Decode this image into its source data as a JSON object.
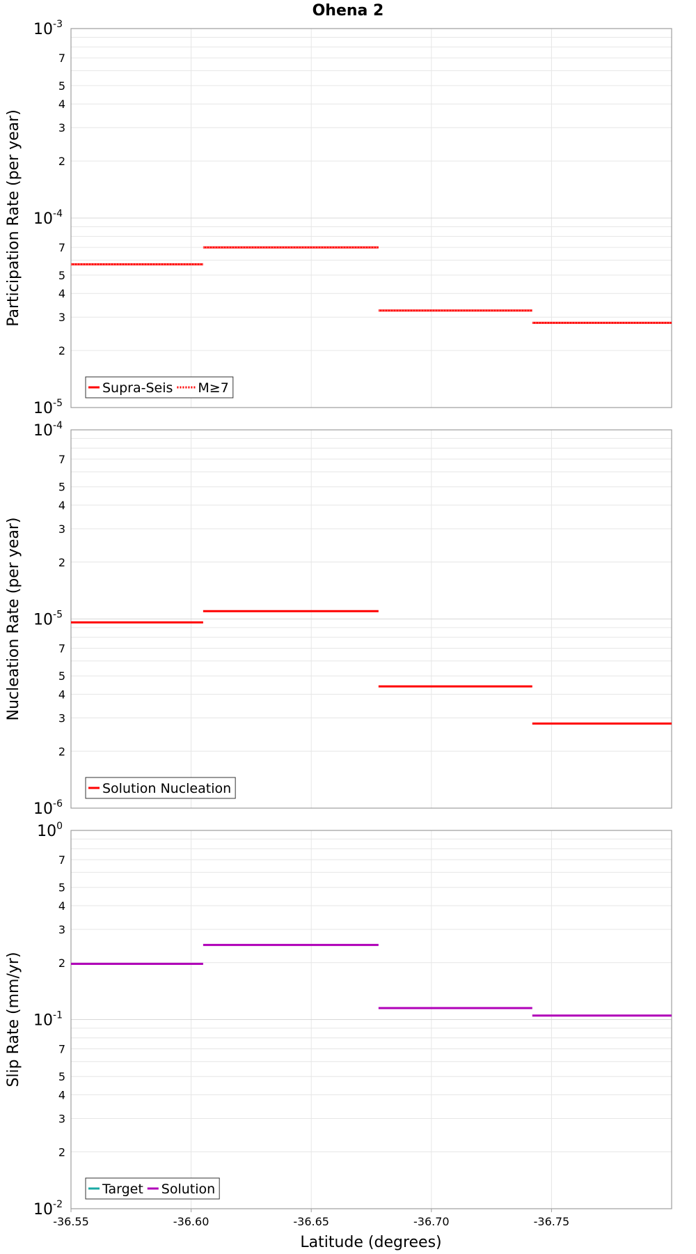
{
  "chart_data": {
    "type": "line",
    "title": "Ohena 2",
    "xlabel": "Latitude (degrees)",
    "xlim": [
      -36.55,
      -36.8
    ],
    "xticks": [
      -36.55,
      -36.6,
      -36.65,
      -36.7,
      -36.75
    ],
    "xtick_labels": [
      "-36.55",
      "-36.60",
      "-36.65",
      "-36.70",
      "-36.75"
    ],
    "minor_tick_labels": [
      "2",
      "3",
      "4",
      "5",
      "7"
    ],
    "panels": [
      {
        "id": "participation",
        "ylabel": "Participation Rate (per year)",
        "yscale": "log",
        "ylim_exp": [
          -5,
          -3
        ],
        "decade_exps": [
          "-3",
          "-4",
          "-5"
        ],
        "legend": [
          "Supra-Seis",
          "M≥7"
        ],
        "series": [
          {
            "name": "Supra-Seis",
            "color": "#ff0000",
            "style": "solid",
            "segments": [
              {
                "x": [
                  -36.55,
                  -36.605
                ],
                "y": 5.7e-05
              },
              {
                "x": [
                  -36.605,
                  -36.678
                ],
                "y": 7e-05
              },
              {
                "x": [
                  -36.678,
                  -36.742
                ],
                "y": 3.25e-05
              },
              {
                "x": [
                  -36.742,
                  -36.8
                ],
                "y": 2.8e-05
              }
            ]
          },
          {
            "name": "M≥7",
            "color": "#ff0000",
            "style": "dotted",
            "segments": [
              {
                "x": [
                  -36.55,
                  -36.605
                ],
                "y": 5.7e-05
              },
              {
                "x": [
                  -36.605,
                  -36.678
                ],
                "y": 7e-05
              },
              {
                "x": [
                  -36.678,
                  -36.742
                ],
                "y": 3.25e-05
              },
              {
                "x": [
                  -36.742,
                  -36.8
                ],
                "y": 2.8e-05
              }
            ]
          }
        ]
      },
      {
        "id": "nucleation",
        "ylabel": "Nucleation Rate (per year)",
        "yscale": "log",
        "ylim_exp": [
          -6,
          -4
        ],
        "decade_exps": [
          "-4",
          "-5",
          "-6"
        ],
        "legend": [
          "Solution Nucleation"
        ],
        "series": [
          {
            "name": "Solution Nucleation",
            "color": "#ff0000",
            "style": "solid",
            "segments": [
              {
                "x": [
                  -36.55,
                  -36.605
                ],
                "y": 9.6e-06
              },
              {
                "x": [
                  -36.605,
                  -36.678
                ],
                "y": 1.1e-05
              },
              {
                "x": [
                  -36.678,
                  -36.742
                ],
                "y": 4.4e-06
              },
              {
                "x": [
                  -36.742,
                  -36.8
                ],
                "y": 2.8e-06
              }
            ]
          }
        ]
      },
      {
        "id": "sliprate",
        "ylabel": "Slip Rate (mm/yr)",
        "yscale": "log",
        "ylim_exp": [
          -2,
          0
        ],
        "decade_exps": [
          "0",
          "-1",
          "-2"
        ],
        "legend": [
          "Target",
          "Solution"
        ],
        "series": [
          {
            "name": "Target",
            "color": "#1aa9a4",
            "style": "solid",
            "segments": []
          },
          {
            "name": "Solution",
            "color": "#b000b8",
            "style": "solid",
            "segments": [
              {
                "x": [
                  -36.55,
                  -36.605
                ],
                "y": 0.197
              },
              {
                "x": [
                  -36.605,
                  -36.678
                ],
                "y": 0.248
              },
              {
                "x": [
                  -36.678,
                  -36.742
                ],
                "y": 0.115
              },
              {
                "x": [
                  -36.742,
                  -36.8
                ],
                "y": 0.105
              }
            ]
          }
        ]
      }
    ]
  }
}
